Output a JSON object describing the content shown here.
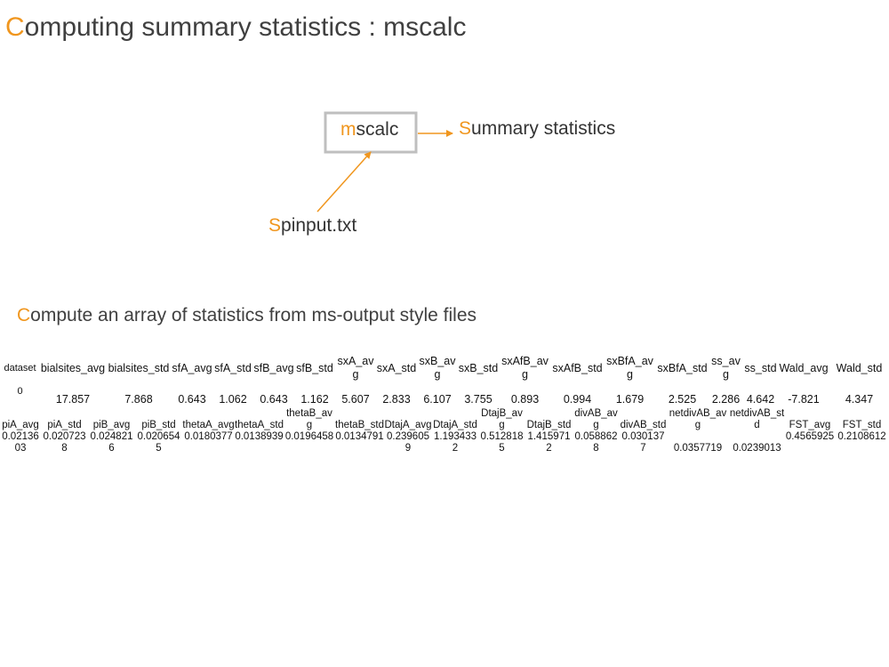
{
  "slide": {
    "title_first": "C",
    "title_rest": "omputing summary statistics : mscalc",
    "subtitle_first": "C",
    "subtitle_rest": "ompute an array of statistics from ms-output style files"
  },
  "diagram": {
    "box_first": "m",
    "box_rest": "scalc",
    "output_first": "S",
    "output_rest": "ummary statistics",
    "input_first": "S",
    "input_rest": "pinput.txt",
    "accent_color": "#f0961e",
    "box_border_color": "#bfbfbf"
  },
  "table1": {
    "headers": [
      "dataset",
      "bialsites_avg",
      "bialsites_std",
      "sfA_avg",
      "sfA_std",
      "sfB_avg",
      "sfB_std",
      "sxA_avg",
      "sxA_std",
      "sxB_avg",
      "sxB_std",
      "sxAfB_avg",
      "sxAfB_std",
      "sxBfA_avg",
      "sxBfA_std",
      "ss_avg",
      "ss_std",
      "Wald_avg",
      "Wald_std"
    ],
    "values": [
      "0",
      "17.857",
      "7.868",
      "0.643",
      "1.062",
      "0.643",
      "1.162",
      "5.607",
      "2.833",
      "6.107",
      "3.755",
      "0.893",
      "0.994",
      "1.679",
      "2.525",
      "2.286",
      "4.642",
      "-7.821",
      "4.347"
    ]
  },
  "table2": {
    "headers": [
      "piA_avg",
      "piA_std",
      "piB_avg",
      "piB_std",
      "thetaA_avg",
      "thetaA_std",
      "thetaB_avg",
      "thetaB_std",
      "DtajA_avg",
      "DtajA_std",
      "DtajB_avg",
      "DtajB_std",
      "divAB_avg",
      "divAB_std",
      "netdivAB_avg",
      "netdivAB_std",
      "FST_avg",
      "FST_std"
    ],
    "values": [
      "0.0213603",
      "0.0207238",
      "0.0248216",
      "0.0206545",
      "0.0180377",
      "0.0138939",
      "0.0196458",
      "0.0134791",
      "0.2396059",
      "1.1934332",
      "0.5128185",
      "1.4159712",
      "0.0588628",
      "0.0301377",
      "0.0357719",
      "0.0239013",
      "0.4565925",
      "0.2108612"
    ]
  }
}
